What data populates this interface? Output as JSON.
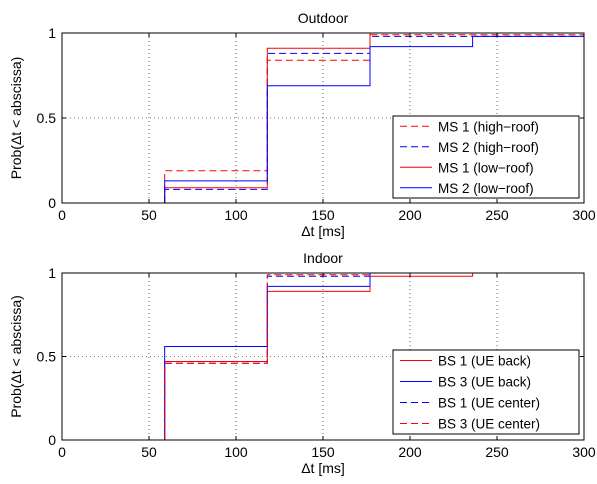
{
  "colors": {
    "red": "#ff0000",
    "blue": "#0000ff"
  },
  "chart_data": [
    {
      "type": "line",
      "step": true,
      "title": "Outdoor",
      "xlabel": "Δt [ms]",
      "ylabel": "Prob(Δt < abscissa)",
      "xlim": [
        0,
        300
      ],
      "ylim": [
        0,
        1
      ],
      "xticks": [
        "0",
        "50",
        "100",
        "150",
        "200",
        "250",
        "300"
      ],
      "yticks": [
        "0",
        "0.5",
        "1"
      ],
      "grid": true,
      "legend_position": "bottom-right",
      "series": [
        {
          "name": "MS 1 (high−roof)",
          "color": "red",
          "dash": "dashed",
          "x": [
            59,
            59,
            118,
            118,
            177,
            177,
            300
          ],
          "y": [
            0,
            0.19,
            0.19,
            0.84,
            0.84,
            0.99,
            0.99
          ]
        },
        {
          "name": "MS 2 (high−roof)",
          "color": "blue",
          "dash": "dashed",
          "x": [
            59,
            59,
            118,
            118,
            177,
            177,
            300
          ],
          "y": [
            0,
            0.08,
            0.08,
            0.88,
            0.88,
            0.98,
            0.98
          ]
        },
        {
          "name": "MS 1 (low−roof)",
          "color": "red",
          "dash": "solid",
          "x": [
            59,
            59,
            118,
            118,
            177,
            177,
            300
          ],
          "y": [
            0,
            0.09,
            0.09,
            0.91,
            0.91,
            1.0,
            1.0
          ]
        },
        {
          "name": "MS 2 (low−roof)",
          "color": "blue",
          "dash": "solid",
          "x": [
            59,
            59,
            118,
            118,
            177,
            177,
            236,
            236,
            300
          ],
          "y": [
            0,
            0.13,
            0.13,
            0.69,
            0.69,
            0.92,
            0.92,
            0.98,
            0.98
          ]
        }
      ]
    },
    {
      "type": "line",
      "step": true,
      "title": "Indoor",
      "xlabel": "Δt [ms]",
      "ylabel": "Prob(Δt < abscissa)",
      "xlim": [
        0,
        300
      ],
      "ylim": [
        0,
        1
      ],
      "xticks": [
        "0",
        "50",
        "100",
        "150",
        "200",
        "250",
        "300"
      ],
      "yticks": [
        "0",
        "0.5",
        "1"
      ],
      "grid": true,
      "legend_position": "bottom-right",
      "series": [
        {
          "name": "BS 1 (UE back)",
          "color": "red",
          "dash": "solid",
          "x": [
            59,
            59,
            118,
            118,
            177,
            177,
            236,
            236,
            300
          ],
          "y": [
            0,
            0.47,
            0.47,
            0.89,
            0.89,
            0.98,
            0.98,
            1.0,
            1.0
          ]
        },
        {
          "name": "BS 3 (UE back)",
          "color": "blue",
          "dash": "solid",
          "x": [
            59,
            59,
            118,
            118,
            177,
            177,
            300
          ],
          "y": [
            0,
            0.56,
            0.56,
            0.92,
            0.92,
            1.0,
            1.0
          ]
        },
        {
          "name": "BS 1 (UE center)",
          "color": "blue",
          "dash": "dashed",
          "x": [
            59,
            59,
            118,
            118,
            177,
            177,
            300
          ],
          "y": [
            0,
            0.46,
            0.46,
            0.98,
            0.98,
            1.0,
            1.0
          ]
        },
        {
          "name": "BS 3 (UE center)",
          "color": "red",
          "dash": "dashed",
          "x": [
            59,
            59,
            118,
            118,
            177,
            177,
            300
          ],
          "y": [
            0,
            0.46,
            0.46,
            0.99,
            0.99,
            1.0,
            1.0
          ]
        }
      ]
    }
  ]
}
